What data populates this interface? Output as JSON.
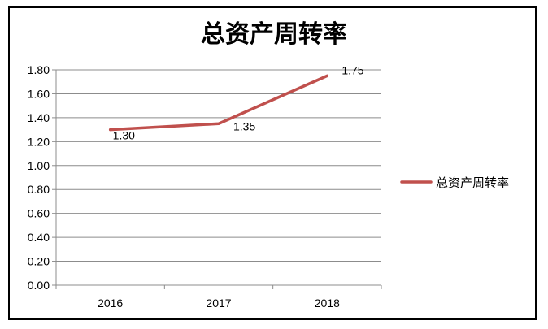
{
  "chart_data": {
    "type": "line",
    "title": "总资产周转率",
    "xlabel": "",
    "ylabel": "",
    "categories": [
      "2016",
      "2017",
      "2018"
    ],
    "series": [
      {
        "name": "总资产周转率",
        "values": [
          1.3,
          1.35,
          1.75
        ],
        "data_labels": [
          "1.30",
          "1.35",
          "1.75"
        ],
        "color": "#c0504d"
      }
    ],
    "ylim": [
      0,
      1.8
    ],
    "y_ticks": [
      "0.00",
      "0.20",
      "0.40",
      "0.60",
      "0.80",
      "1.00",
      "1.20",
      "1.40",
      "1.60",
      "1.80"
    ],
    "grid": true,
    "legend_position": "right"
  }
}
